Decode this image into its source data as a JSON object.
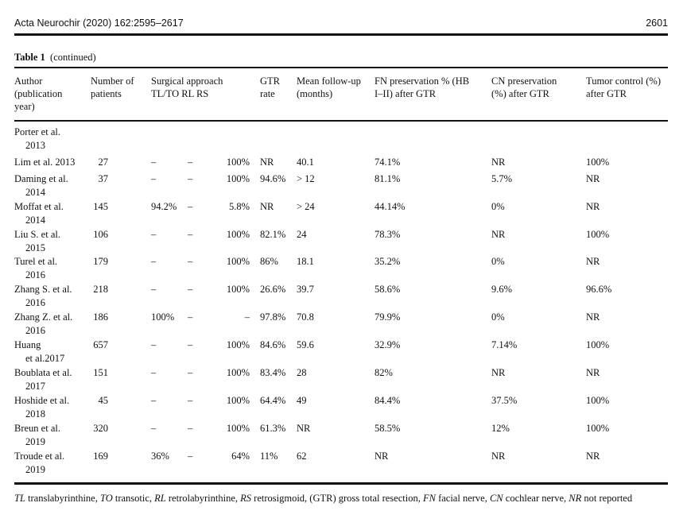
{
  "running_head": {
    "journal": "Acta Neurochir (2020) 162:2595–2617",
    "page": "2601"
  },
  "table": {
    "label": "Table 1",
    "caption": "(continued)",
    "headers": {
      "author": [
        "Author",
        "(publication",
        "year)"
      ],
      "patients": [
        "Number of",
        "patients"
      ],
      "approach": [
        "Surgical approach",
        "TL/TO RL RS"
      ],
      "gtr": [
        "GTR",
        "rate"
      ],
      "followup": [
        "Mean follow-up",
        "(months)"
      ],
      "fn": [
        "FN preservation % (HB",
        "I–II) after GTR"
      ],
      "cn": [
        "CN preservation",
        "(%) after GTR"
      ],
      "tumor": [
        "Tumor control (%)",
        "after GTR"
      ]
    },
    "rows": [
      {
        "a1": "Porter et al.",
        "a2": "2013",
        "n": "",
        "tl": "",
        "rl": "",
        "rs": "",
        "gtr": "",
        "fu": "",
        "fn": "",
        "cn": "",
        "tc": ""
      },
      {
        "a1": "Lim et al. 2013",
        "a2": "",
        "n": "27",
        "tl": "–",
        "rl": "–",
        "rs": "100%",
        "gtr": "NR",
        "fu": "40.1",
        "fn": "74.1%",
        "cn": "NR",
        "tc": "100%"
      },
      {
        "a1": "Daming et al.",
        "a2": "2014",
        "n": "37",
        "tl": "–",
        "rl": "–",
        "rs": "100%",
        "gtr": "94.6%",
        "fu": "> 12",
        "fn": "81.1%",
        "cn": "5.7%",
        "tc": "NR"
      },
      {
        "a1": "Moffat et al.",
        "a2": "2014",
        "n": "145",
        "tl": "94.2%",
        "rl": "–",
        "rs": "5.8%",
        "gtr": "NR",
        "fu": "> 24",
        "fn": "44.14%",
        "cn": "0%",
        "tc": "NR"
      },
      {
        "a1": "Liu S. et al.",
        "a2": "2015",
        "n": "106",
        "tl": "–",
        "rl": "–",
        "rs": "100%",
        "gtr": "82.1%",
        "fu": "24",
        "fn": "78.3%",
        "cn": "NR",
        "tc": "100%"
      },
      {
        "a1": "Turel et al.",
        "a2": "2016",
        "n": "179",
        "tl": "–",
        "rl": "–",
        "rs": "100%",
        "gtr": "86%",
        "fu": "18.1",
        "fn": "35.2%",
        "cn": "0%",
        "tc": "NR"
      },
      {
        "a1": "Zhang S. et al.",
        "a2": "2016",
        "n": "218",
        "tl": "–",
        "rl": "–",
        "rs": "100%",
        "gtr": "26.6%",
        "fu": "39.7",
        "fn": "58.6%",
        "cn": "9.6%",
        "tc": "96.6%"
      },
      {
        "a1": "Zhang Z. et al.",
        "a2": "2016",
        "n": "186",
        "tl": "100%",
        "rl": "–",
        "rs": "–",
        "gtr": "97.8%",
        "fu": "70.8",
        "fn": "79.9%",
        "cn": "0%",
        "tc": "NR"
      },
      {
        "a1": "Huang",
        "a2": "et al.2017",
        "n": "657",
        "tl": "–",
        "rl": "–",
        "rs": "100%",
        "gtr": "84.6%",
        "fu": "59.6",
        "fn": "32.9%",
        "cn": "7.14%",
        "tc": "100%"
      },
      {
        "a1": "Boublata et al.",
        "a2": "2017",
        "n": "151",
        "tl": "–",
        "rl": "–",
        "rs": "100%",
        "gtr": "83.4%",
        "fu": "28",
        "fn": "82%",
        "cn": "NR",
        "tc": "NR"
      },
      {
        "a1": "Hoshide et al.",
        "a2": "2018",
        "n": "45",
        "tl": "–",
        "rl": "–",
        "rs": "100%",
        "gtr": "64.4%",
        "fu": "49",
        "fn": "84.4%",
        "cn": "37.5%",
        "tc": "100%"
      },
      {
        "a1": "Breun et al.",
        "a2": "2019",
        "n": "320",
        "tl": "–",
        "rl": "–",
        "rs": "100%",
        "gtr": "61.3%",
        "fu": "NR",
        "fn": "58.5%",
        "cn": "12%",
        "tc": "100%"
      },
      {
        "a1": "Troude et al.",
        "a2": "2019",
        "n": "169",
        "tl": "36%",
        "rl": "–",
        "rs": "64%",
        "gtr": "11%",
        "fu": "62",
        "fn": "NR",
        "cn": "NR",
        "tc": "NR"
      }
    ],
    "footnote": [
      {
        "abbr": "TL",
        "def": " translabyrinthine, "
      },
      {
        "abbr": "TO",
        "def": " transotic, "
      },
      {
        "abbr": "RL",
        "def": " retrolabyrinthine, "
      },
      {
        "abbr": "RS",
        "def": " retrosigmoid, (GTR) gross total resection, "
      },
      {
        "abbr": "FN",
        "def": " facial nerve, "
      },
      {
        "abbr": "CN",
        "def": " cochlear nerve, "
      },
      {
        "abbr": "NR",
        "def": " not reported"
      }
    ]
  }
}
